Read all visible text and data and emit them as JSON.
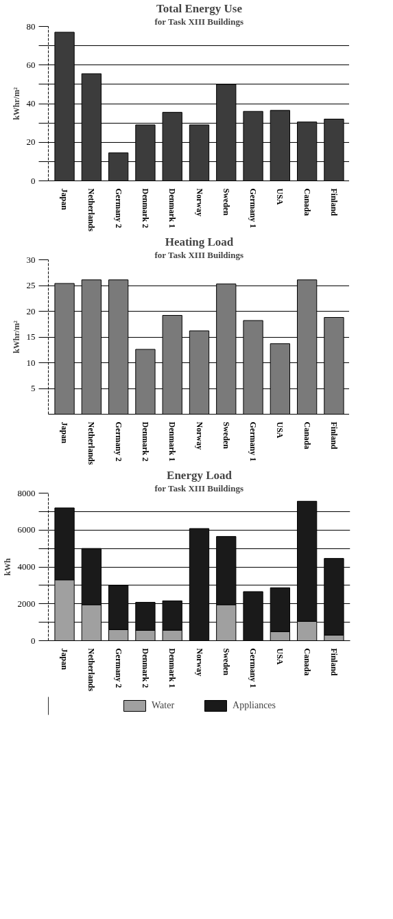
{
  "chart_data": [
    {
      "type": "bar",
      "title": "Total Energy Use",
      "subtitle": "for Task XIII Buildings",
      "ylabel": "kWhr/m²",
      "categories": [
        "Japan",
        "Netherlands",
        "Germany 2",
        "Denmark 2",
        "Denmark 1",
        "Norway",
        "Sweden",
        "Germany 1",
        "USA",
        "Canada",
        "Finland"
      ],
      "values": [
        77,
        55.5,
        14.5,
        29,
        35.5,
        29,
        50,
        36,
        36.5,
        30.5,
        32
      ],
      "color": "#3c3c3c",
      "ylim": [
        0,
        80
      ],
      "yticks": [
        0,
        {
          "value": 10,
          "label": null
        },
        20,
        {
          "value": 30,
          "label": null
        },
        40,
        {
          "value": 50,
          "label": null
        },
        60,
        {
          "value": 70,
          "label": null
        },
        80
      ],
      "grid": "y",
      "legend": false
    },
    {
      "type": "bar",
      "title": "Heating Load",
      "subtitle": "for Task XIII Buildings",
      "ylabel": "kWhr/m²",
      "categories": [
        "Japan",
        "Netherlands",
        "Germany 2",
        "Denmark 2",
        "Denmark 1",
        "Norway",
        "Sweden",
        "Germany 1",
        "USA",
        "Canada",
        "Finland"
      ],
      "values": [
        25.4,
        26.1,
        26.1,
        12.6,
        19.2,
        16.2,
        25.3,
        18.2,
        13.7,
        26.1,
        18.8
      ],
      "color": "#7a7a7a",
      "ylim": [
        0,
        30
      ],
      "yticks": [
        5,
        10,
        15,
        20,
        25,
        30
      ],
      "grid": "y",
      "legend": false
    },
    {
      "type": "bar",
      "title": "Energy Load",
      "subtitle": "for Task XIII Buildings",
      "ylabel": "kWh",
      "stacked": true,
      "categories": [
        "Japan",
        "Netherlands",
        "Germany 2",
        "Denmark 2",
        "Denmark 1",
        "Norway",
        "Sweden",
        "Germany 1",
        "USA",
        "Canada",
        "Finland"
      ],
      "series": [
        {
          "name": "Water",
          "color": "#a0a0a0",
          "values": [
            3300,
            1950,
            600,
            560,
            570,
            0,
            1950,
            0,
            490,
            1050,
            300
          ]
        },
        {
          "name": "Appliances",
          "color": "#1a1a1a",
          "values": [
            3900,
            3050,
            2400,
            1520,
            1590,
            6080,
            3700,
            2660,
            2380,
            6510,
            4160
          ]
        }
      ],
      "ylim": [
        0,
        8000
      ],
      "yticks": [
        0,
        {
          "value": 1000,
          "label": null
        },
        2000,
        {
          "value": 3000,
          "label": null
        },
        4000,
        {
          "value": 5000,
          "label": null
        },
        6000,
        {
          "value": 7000,
          "label": null
        },
        8000
      ],
      "grid": "y",
      "legend": "bottom"
    }
  ]
}
